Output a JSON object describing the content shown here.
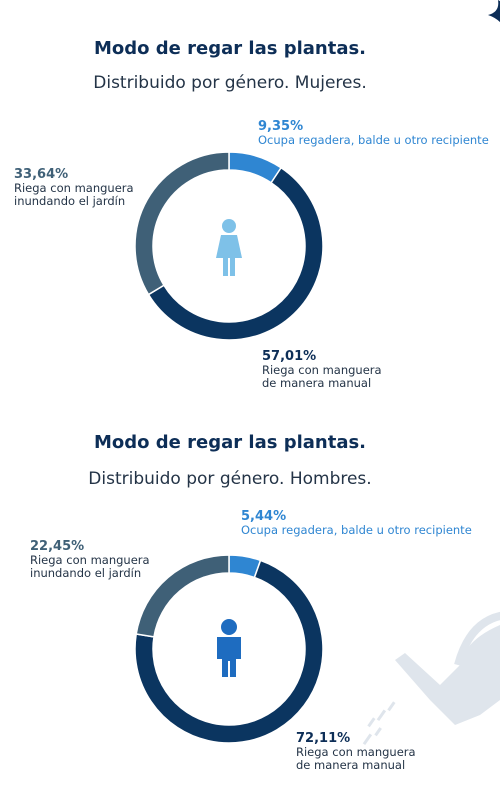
{
  "colors": {
    "title": "#0d2e57",
    "subtitle": "#243447",
    "dark_navy": "#0b3560",
    "slate": "#3f6077",
    "light_blue": "#2f86d2",
    "icon_light": "#7ec1e8",
    "icon_dark": "#1e6cc0",
    "watering_can": "#dfe5ec"
  },
  "chart_data": [
    {
      "type": "pie",
      "variant": "donut",
      "title": "Modo de regar las plantas.",
      "subtitle": "Distribuido por género. Mujeres.",
      "icon": "woman-icon",
      "series": [
        {
          "name": "Ocupa regadera, balde u otro recipiente",
          "value": 9.35,
          "label": "9,35%",
          "color": "#2f86d2"
        },
        {
          "name": "Riega con manguera\nde manera manual",
          "value": 57.01,
          "label": "57,01%",
          "color": "#0b3560"
        },
        {
          "name": "Riega con manguera\ninundando el jardín",
          "value": 33.64,
          "label": "33,64%",
          "color": "#3f6077"
        }
      ]
    },
    {
      "type": "pie",
      "variant": "donut",
      "title": "Modo de regar las plantas.",
      "subtitle": "Distribuido por género. Hombres.",
      "icon": "man-icon",
      "series": [
        {
          "name": "Ocupa regadera, balde u otro recipiente",
          "value": 5.44,
          "label": "5,44%",
          "color": "#2f86d2"
        },
        {
          "name": "Riega con manguera\nde manera manual",
          "value": 72.11,
          "label": "72,11%",
          "color": "#0b3560"
        },
        {
          "name": "Riega con manguera\ninundando el jardín",
          "value": 22.45,
          "label": "22,45%",
          "color": "#3f6077"
        }
      ]
    }
  ]
}
